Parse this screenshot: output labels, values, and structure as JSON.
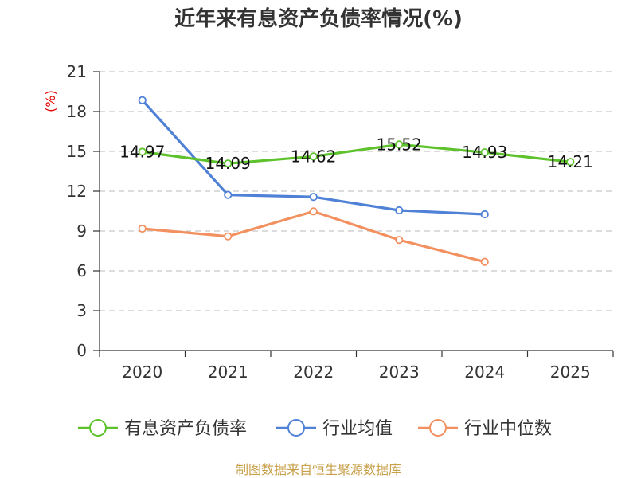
{
  "chart_data": {
    "type": "line",
    "title": "近年来有息资产负债率情况(%)",
    "ylabel": "(%)",
    "xlabel": "",
    "categories": [
      "2020",
      "2021",
      "2022",
      "2023",
      "2024",
      "2025"
    ],
    "ylim": [
      0,
      21
    ],
    "yticks": [
      0,
      3,
      6,
      9,
      12,
      15,
      18,
      21
    ],
    "grid": true,
    "legend_position": "bottom",
    "series": [
      {
        "name": "有息资产负债率",
        "color": "#5ec22c",
        "values": [
          14.97,
          14.09,
          14.62,
          15.52,
          14.93,
          14.21
        ],
        "show_labels": true
      },
      {
        "name": "行业均值",
        "color": "#4f81d6",
        "values": [
          18.85,
          11.72,
          11.57,
          10.56,
          10.26,
          null
        ],
        "show_labels": false
      },
      {
        "name": "行业中位数",
        "color": "#f39060",
        "values": [
          9.18,
          8.6,
          10.48,
          8.33,
          6.68,
          null
        ],
        "show_labels": false
      }
    ],
    "source": "制图数据来自恒生聚源数据库"
  }
}
